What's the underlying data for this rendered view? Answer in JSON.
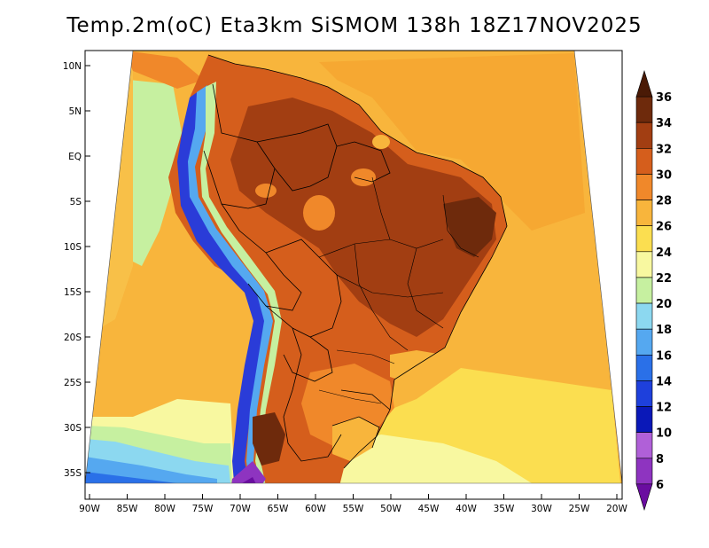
{
  "title": "Temp.2m(oC) Eta3km SiSMOM 138h 18Z17NOV2025",
  "map": {
    "variable": "2 m air temperature",
    "units": "oC",
    "model": "Eta3km SiSMOM",
    "forecast_hour": "138h",
    "valid_time": "18Z17NOV2025",
    "lat_ticks": [
      "10N",
      "5N",
      "EQ",
      "5S",
      "10S",
      "15S",
      "20S",
      "25S",
      "30S",
      "35S"
    ],
    "lon_ticks": [
      "90W",
      "85W",
      "80W",
      "75W",
      "70W",
      "65W",
      "60W",
      "55W",
      "50W",
      "45W",
      "40W",
      "35W",
      "30W",
      "25W",
      "20W"
    ]
  },
  "colorbar": {
    "levels": [
      "6",
      "8",
      "10",
      "12",
      "14",
      "16",
      "18",
      "20",
      "22",
      "24",
      "26",
      "28",
      "30",
      "32",
      "34",
      "36"
    ],
    "colors": [
      "#6a0da0",
      "#8e34c0",
      "#b060d8",
      "#0a18b8",
      "#1e40dc",
      "#2a70e8",
      "#55a8f0",
      "#8cd8f0",
      "#c6f0a0",
      "#f8f8a0",
      "#fbde50",
      "#f8b53c",
      "#f0882a",
      "#d55e1c",
      "#a23e12",
      "#6e2a0c",
      "#4a1a06"
    ]
  }
}
